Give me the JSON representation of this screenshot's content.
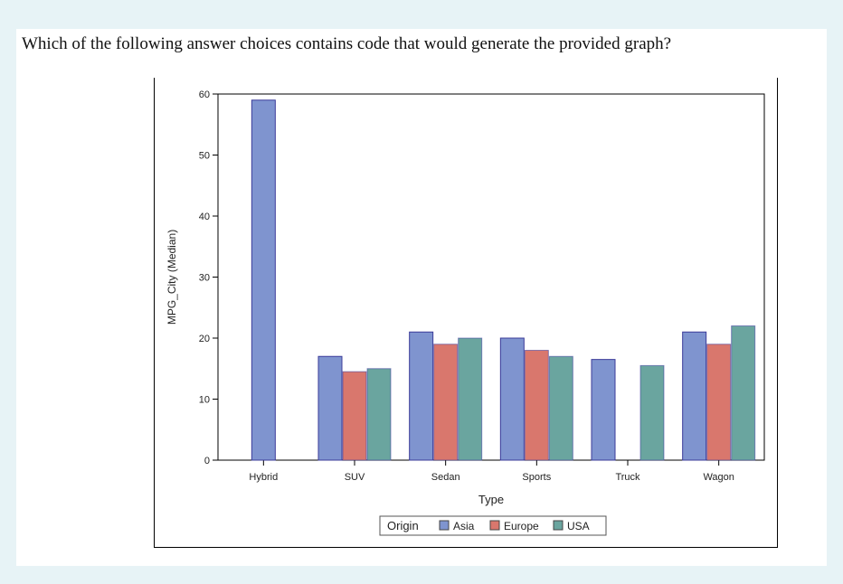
{
  "question": "Which of the following answer choices contains code that would generate the provided graph?",
  "chart_data": {
    "type": "bar",
    "grouped": true,
    "categories": [
      "Hybrid",
      "SUV",
      "Sedan",
      "Sports",
      "Truck",
      "Wagon"
    ],
    "series": [
      {
        "name": "Asia",
        "color": "#7f94cf",
        "values": [
          59,
          17,
          21,
          20,
          16.5,
          21
        ]
      },
      {
        "name": "Europe",
        "color": "#d9776d",
        "values": [
          null,
          14.5,
          19,
          18,
          null,
          19
        ]
      },
      {
        "name": "USA",
        "color": "#6aa59f",
        "values": [
          null,
          15,
          20,
          17,
          15.5,
          22
        ]
      }
    ],
    "xlabel": "Type",
    "ylabel": "MPG_City (Median)",
    "ylim": [
      0,
      60
    ],
    "yticks": [
      0,
      10,
      20,
      30,
      40,
      50,
      60
    ],
    "legend": {
      "title": "Origin",
      "placement": "bottom-center"
    },
    "grid": false
  }
}
